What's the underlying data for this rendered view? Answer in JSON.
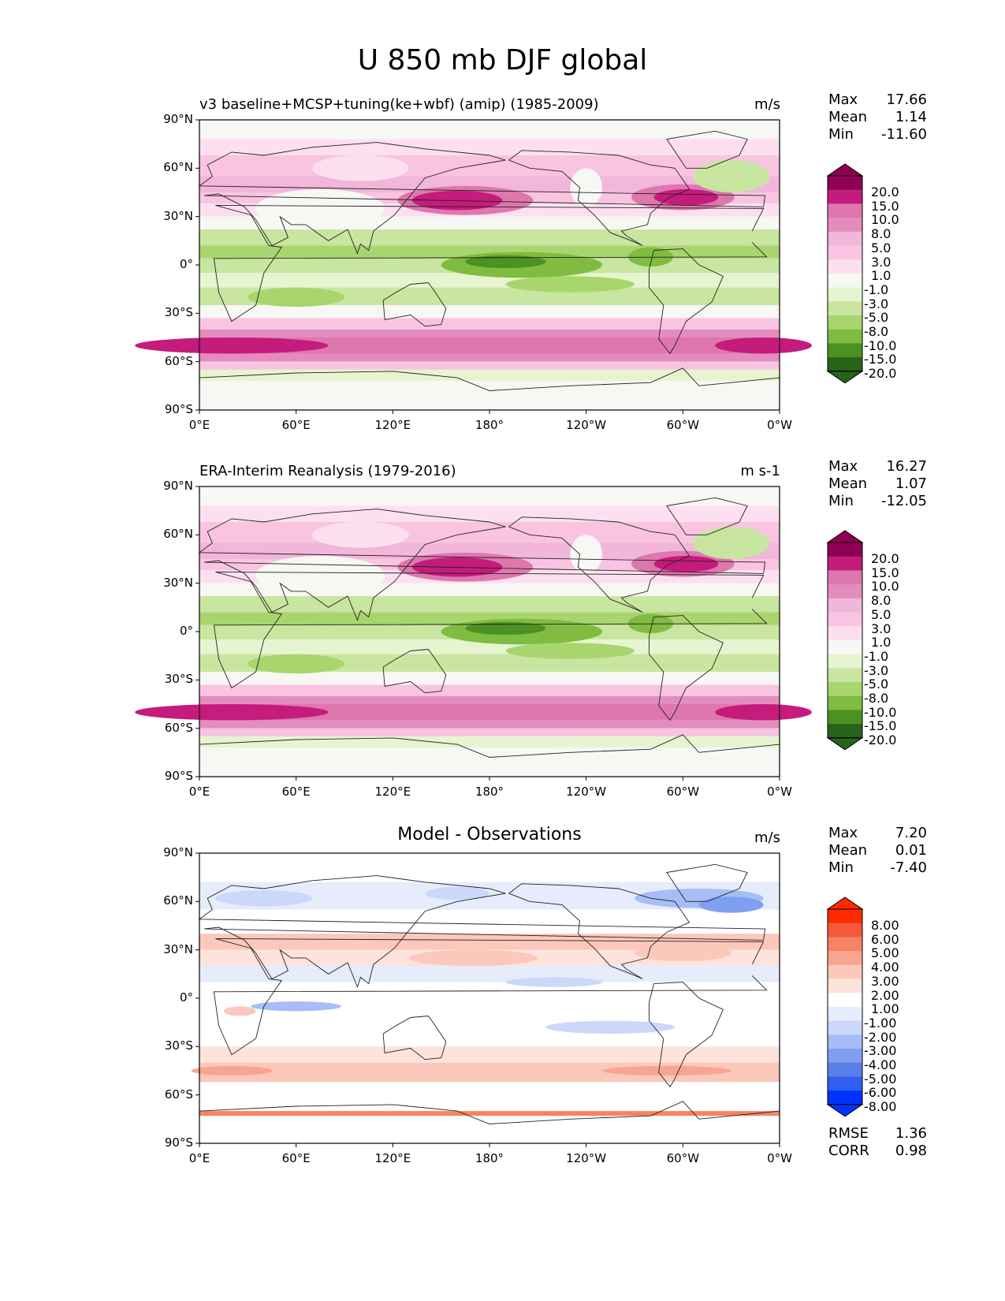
{
  "title": "U 850 mb DJF global",
  "colors": {
    "pinkgreen": [
      "#276419",
      "#4d9221",
      "#7fbc41",
      "#a9d56e",
      "#c8e6a0",
      "#e6f5d0",
      "#f7f7f4",
      "#fde0ef",
      "#f9c4e1",
      "#f1b6da",
      "#e38dbf",
      "#de77ae",
      "#c51b7d",
      "#8e0152"
    ],
    "diff": [
      "#0033ff",
      "#2f5ef0",
      "#5a7fe8",
      "#7f9ff0",
      "#a6bdf5",
      "#cbd8f9",
      "#e6ecfb",
      "#ffffff",
      "#fde3dc",
      "#fbc8bb",
      "#f8a590",
      "#f68264",
      "#f45a38",
      "#ff2a00"
    ]
  },
  "panels": [
    {
      "title": "v3 baseline+MCSP+tuning(ke+wbf) (amip) (1985-2009)",
      "units": "m/s",
      "stats": [
        {
          "label": "Max",
          "value": "17.66"
        },
        {
          "label": "Mean",
          "value": "1.14"
        },
        {
          "label": "Min",
          "value": "-11.60"
        }
      ],
      "colorbar_labels": [
        "20.0",
        "15.0",
        "10.0",
        "8.0",
        "5.0",
        "3.0",
        "1.0",
        "-1.0",
        "-3.0",
        "-5.0",
        "-8.0",
        "-10.0",
        "-15.0",
        "-20.0"
      ]
    },
    {
      "title": "ERA-Interim Reanalysis (1979-2016)",
      "units": "m s-1",
      "stats": [
        {
          "label": "Max",
          "value": "16.27"
        },
        {
          "label": "Mean",
          "value": "1.07"
        },
        {
          "label": "Min",
          "value": "-12.05"
        }
      ],
      "colorbar_labels": [
        "20.0",
        "15.0",
        "10.0",
        "8.0",
        "5.0",
        "3.0",
        "1.0",
        "-1.0",
        "-3.0",
        "-5.0",
        "-8.0",
        "-10.0",
        "-15.0",
        "-20.0"
      ]
    },
    {
      "title": "Model - Observations",
      "units": "m/s",
      "stats": [
        {
          "label": "Max",
          "value": "7.20"
        },
        {
          "label": "Mean",
          "value": "0.01"
        },
        {
          "label": "Min",
          "value": "-7.40"
        }
      ],
      "colorbar_labels": [
        "8.00",
        "6.00",
        "5.00",
        "4.00",
        "3.00",
        "2.00",
        "1.00",
        "-1.00",
        "-2.00",
        "-3.00",
        "-4.00",
        "-5.00",
        "-6.00",
        "-8.00"
      ],
      "metrics": [
        {
          "label": "RMSE",
          "value": "1.36"
        },
        {
          "label": "CORR",
          "value": "0.98"
        }
      ]
    }
  ],
  "lat_ticks": [
    "90°N",
    "60°N",
    "30°N",
    "0°",
    "30°S",
    "60°S",
    "90°S"
  ],
  "lon_ticks": [
    "0°E",
    "60°E",
    "120°E",
    "180°",
    "120°W",
    "60°W",
    "0°W"
  ]
}
